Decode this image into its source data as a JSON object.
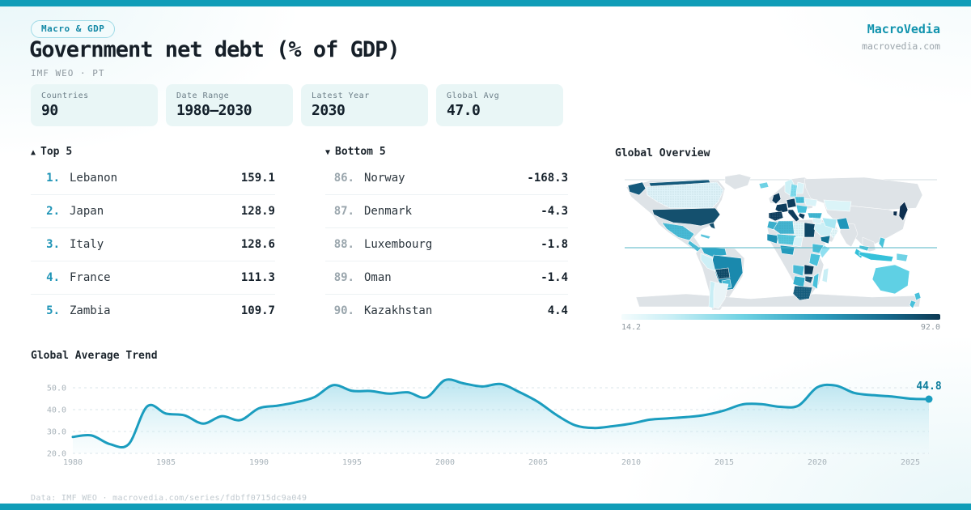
{
  "header": {
    "badge": "Macro & GDP",
    "title": "Government net debt (% of GDP)",
    "subtitle": "IMF WEO · PT"
  },
  "brand": {
    "name": "MacroVedia",
    "domain": "macrovedia.com"
  },
  "stats": [
    {
      "label": "Countries",
      "value": "90"
    },
    {
      "label": "Date Range",
      "value": "1980—2030"
    },
    {
      "label": "Latest Year",
      "value": "2030"
    },
    {
      "label": "Global Avg",
      "value": "47.0"
    }
  ],
  "top5": {
    "marker": "▲",
    "title": "Top 5",
    "rows": [
      {
        "rank": "1.",
        "name": "Lebanon",
        "value": "159.1"
      },
      {
        "rank": "2.",
        "name": "Japan",
        "value": "128.9"
      },
      {
        "rank": "3.",
        "name": "Italy",
        "value": "128.6"
      },
      {
        "rank": "4.",
        "name": "France",
        "value": "111.3"
      },
      {
        "rank": "5.",
        "name": "Zambia",
        "value": "109.7"
      }
    ]
  },
  "bottom5": {
    "marker": "▼",
    "title": "Bottom 5",
    "rows": [
      {
        "rank": "86.",
        "name": "Norway",
        "value": "-168.3"
      },
      {
        "rank": "87.",
        "name": "Denmark",
        "value": "-4.3"
      },
      {
        "rank": "88.",
        "name": "Luxembourg",
        "value": "-1.8"
      },
      {
        "rank": "89.",
        "name": "Oman",
        "value": "-1.4"
      },
      {
        "rank": "90.",
        "name": "Kazakhstan",
        "value": "4.4"
      }
    ]
  },
  "map": {
    "title": "Global Overview",
    "scale_min": "14.2",
    "scale_max": "92.0"
  },
  "trend": {
    "title": "Global Average Trend",
    "end_label": "44.8"
  },
  "footer": {
    "text": "Data: IMF WEO · macrovedia.com/series/fdbff0715dc9a049"
  },
  "colors": {
    "accent": "#1193ae",
    "top_bar": "#109db8",
    "line": "#1b9dbf",
    "scale_light": "#f4fcfd",
    "scale_dark": "#0d3a54",
    "no_data_land": "#dee3e7"
  },
  "chart_data": [
    {
      "type": "area",
      "title": "Global Average Trend",
      "x": [
        1980,
        1981,
        1982,
        1983,
        1984,
        1985,
        1986,
        1987,
        1988,
        1989,
        1990,
        1991,
        1992,
        1993,
        1994,
        1995,
        1996,
        1997,
        1998,
        1999,
        2000,
        2001,
        2002,
        2003,
        2004,
        2005,
        2006,
        2007,
        2008,
        2009,
        2010,
        2011,
        2012,
        2013,
        2014,
        2015,
        2016,
        2017,
        2018,
        2019,
        2020,
        2021,
        2022,
        2023,
        2024,
        2025,
        2026
      ],
      "values": [
        27.5,
        28.2,
        24.2,
        24.2,
        41.5,
        38.2,
        37.4,
        33.6,
        37.0,
        35.2,
        40.6,
        41.8,
        43.4,
        45.8,
        51.2,
        48.6,
        48.5,
        47.3,
        47.9,
        45.6,
        53.5,
        52.0,
        50.6,
        51.7,
        48.0,
        43.5,
        37.5,
        32.8,
        31.6,
        32.4,
        33.6,
        35.4,
        36.0,
        36.6,
        37.6,
        39.6,
        42.4,
        42.5,
        41.3,
        41.9,
        50.2,
        51.0,
        47.6,
        46.6,
        46.0,
        45.0,
        44.8
      ],
      "end_label": "44.8",
      "xticks": [
        1980,
        1985,
        1990,
        1995,
        2000,
        2005,
        2010,
        2015,
        2020,
        2025
      ],
      "yticks": [
        20,
        30,
        40,
        50
      ],
      "ytick_labels": [
        "20.0",
        "30.0",
        "40.0",
        "50.0"
      ],
      "ylim": [
        20,
        57
      ],
      "grid": true,
      "legend": "none"
    },
    {
      "type": "heatmap",
      "subtype": "world-choropleth",
      "title": "Global Overview",
      "colorbar": {
        "min": 14.2,
        "max": 92.0
      },
      "note": "Choropleth of government net debt (% of GDP); extremes shown in Top 5 / Bottom 5 lists",
      "extremes_high": [
        [
          "Lebanon",
          159.1
        ],
        [
          "Japan",
          128.9
        ],
        [
          "Italy",
          128.6
        ],
        [
          "France",
          111.3
        ],
        [
          "Zambia",
          109.7
        ]
      ],
      "extremes_low": [
        [
          "Norway",
          -168.3
        ],
        [
          "Denmark",
          -4.3
        ],
        [
          "Luxembourg",
          -1.8
        ],
        [
          "Oman",
          -1.4
        ],
        [
          "Kazakhstan",
          4.4
        ]
      ]
    }
  ]
}
